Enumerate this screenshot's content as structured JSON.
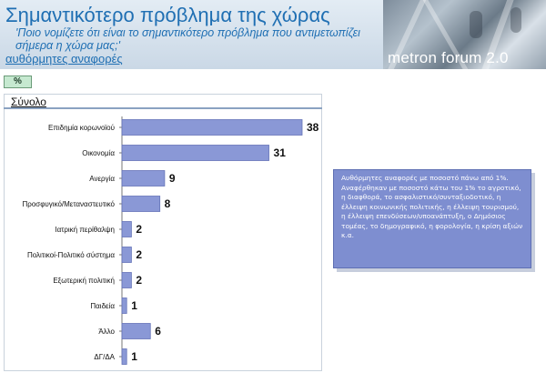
{
  "header": {
    "title": "Σημαντικότερο πρόβλημα της χώρας",
    "question": "'Ποιο νομίζετε ότι είναι το σημαντικότερο πρόβλημα που αντιμετωπίζει σήμερα η χώρα μας;'",
    "subtitle": "αυθόρμητες αναφορές",
    "brand": "metron forum 2.0"
  },
  "controls": {
    "percent_label": "%"
  },
  "panel": {
    "title": "Σύνολο"
  },
  "colors": {
    "bar": "#8a98d6",
    "bar_edge": "#6574b8",
    "note_bg": "#7e8ed0",
    "title": "#1f6fb3"
  },
  "chart_data": {
    "type": "bar",
    "orientation": "horizontal",
    "title": "Σύνολο",
    "categories": [
      "Επιδημία κορωνοϊού",
      "Οικονομία",
      "Ανεργία",
      "Προσφυγικό/Μεταναστευτικό",
      "Ιατρική περίθαλψη",
      "Πολιτικοί-Πολιτικό σύστημα",
      "Εξωτερική πολιτική",
      "Παιδεία",
      "Άλλο",
      "ΔΓ/ΔΑ"
    ],
    "values": [
      38,
      31,
      9,
      8,
      2,
      2,
      2,
      1,
      6,
      1
    ],
    "xlim": [
      0,
      38
    ],
    "grid": false,
    "legend": "none"
  },
  "note": {
    "text": "Αυθόρμητες αναφορές με ποσοστό πάνω από 1%. Αναφέρθηκαν με ποσοστό κάτω του 1% το αγροτικό, η διαφθορά, το ασφαλιστικό/συνταξιοδοτικό, η έλλειψη κοινωνικής πολιτικής, η έλλειψη τουρισμού, η έλλειψη επενδύσεων/υποανάπτυξη, ο Δημόσιος τομέας, το δημογραφικό, η φορολογία, η κρίση αξιών κ.α."
  }
}
